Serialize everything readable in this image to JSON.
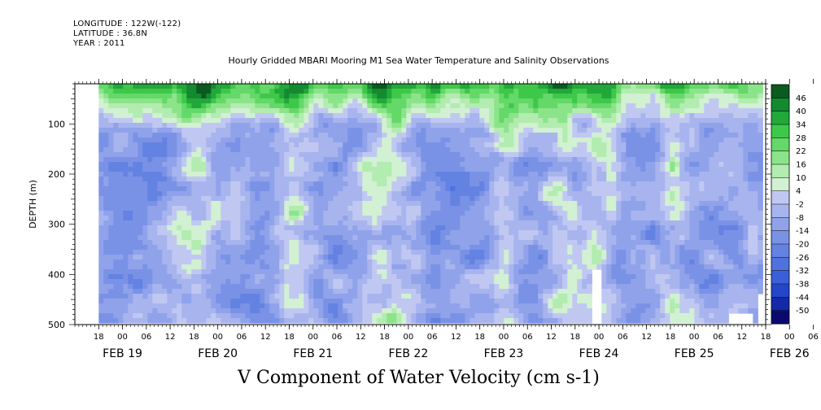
{
  "header": {
    "longitude": "LONGITUDE : 122W(-122)",
    "latitude": "LATITUDE : 36.8N",
    "year": "YEAR : 2011"
  },
  "title": "Hourly Gridded MBARI Mooring M1 Sea Water Temperature and Salinity Observations",
  "bottom_title": "V Component of Water Velocity (cm s-1)",
  "chart_data": {
    "type": "heatmap",
    "title": "Hourly Gridded MBARI Mooring M1 Sea Water Temperature and Salinity Observations",
    "xlabel": "",
    "ylabel": "DEPTH (m)",
    "colorbar_label": "V Component of Water Velocity (cm s-1)",
    "x_range_hours": [
      "FEB 19 18:00",
      "FEB 26 12:00"
    ],
    "data_x_range": [
      "FEB 19 12:00",
      "FEB 26 12:00"
    ],
    "ylim": [
      500,
      20
    ],
    "data_depth_range": [
      20,
      490
    ],
    "y_ticks": [
      100,
      200,
      300,
      400,
      500
    ],
    "hour_ticks": [
      "18",
      "00",
      "06",
      "12",
      "18",
      "00",
      "06",
      "12",
      "18",
      "00",
      "06",
      "12",
      "18",
      "00",
      "06",
      "12",
      "18",
      "00",
      "06",
      "12",
      "18",
      "00",
      "06",
      "12",
      "18",
      "00",
      "06",
      "12",
      "18",
      "00",
      "06",
      "12"
    ],
    "day_labels": [
      "FEB 19",
      "FEB 20",
      "FEB 21",
      "FEB 22",
      "FEB 23",
      "FEB 24",
      "FEB 25",
      "FEB 26"
    ],
    "colorbar_levels": [
      -50,
      -44,
      -38,
      -32,
      -26,
      -20,
      -14,
      -8,
      -2,
      4,
      10,
      16,
      22,
      28,
      34,
      40,
      46
    ],
    "colorbar_colors": [
      "#0a0a6e",
      "#1428a8",
      "#2446c8",
      "#3a5fd8",
      "#4f72de",
      "#6482e2",
      "#7a92e6",
      "#90a2ea",
      "#a8b4ee",
      "#c0c8f2",
      "#d2f0d2",
      "#b2ecb0",
      "#8ce48a",
      "#64d868",
      "#3ec84a",
      "#22a83a",
      "#148a30",
      "#0b5a20"
    ],
    "no_data_color": "#ffffff",
    "data_summary": "Positive V (green, 20 to 46 cm/s) concentrated in the upper 20-100 m throughout the period; mostly negative V (blue/purple, -2 to -26 cm/s) below about 120 m; several vertical green bands of positive flow at depth, notably near FEB 20 18h, FEB 21 12h, FEB 22 06h, FEB 23 00h and FEB 24 06h; small white no-data patches near FEB 24 06h and FEB 25 18h-FEB 26 06h below 380 m."
  }
}
